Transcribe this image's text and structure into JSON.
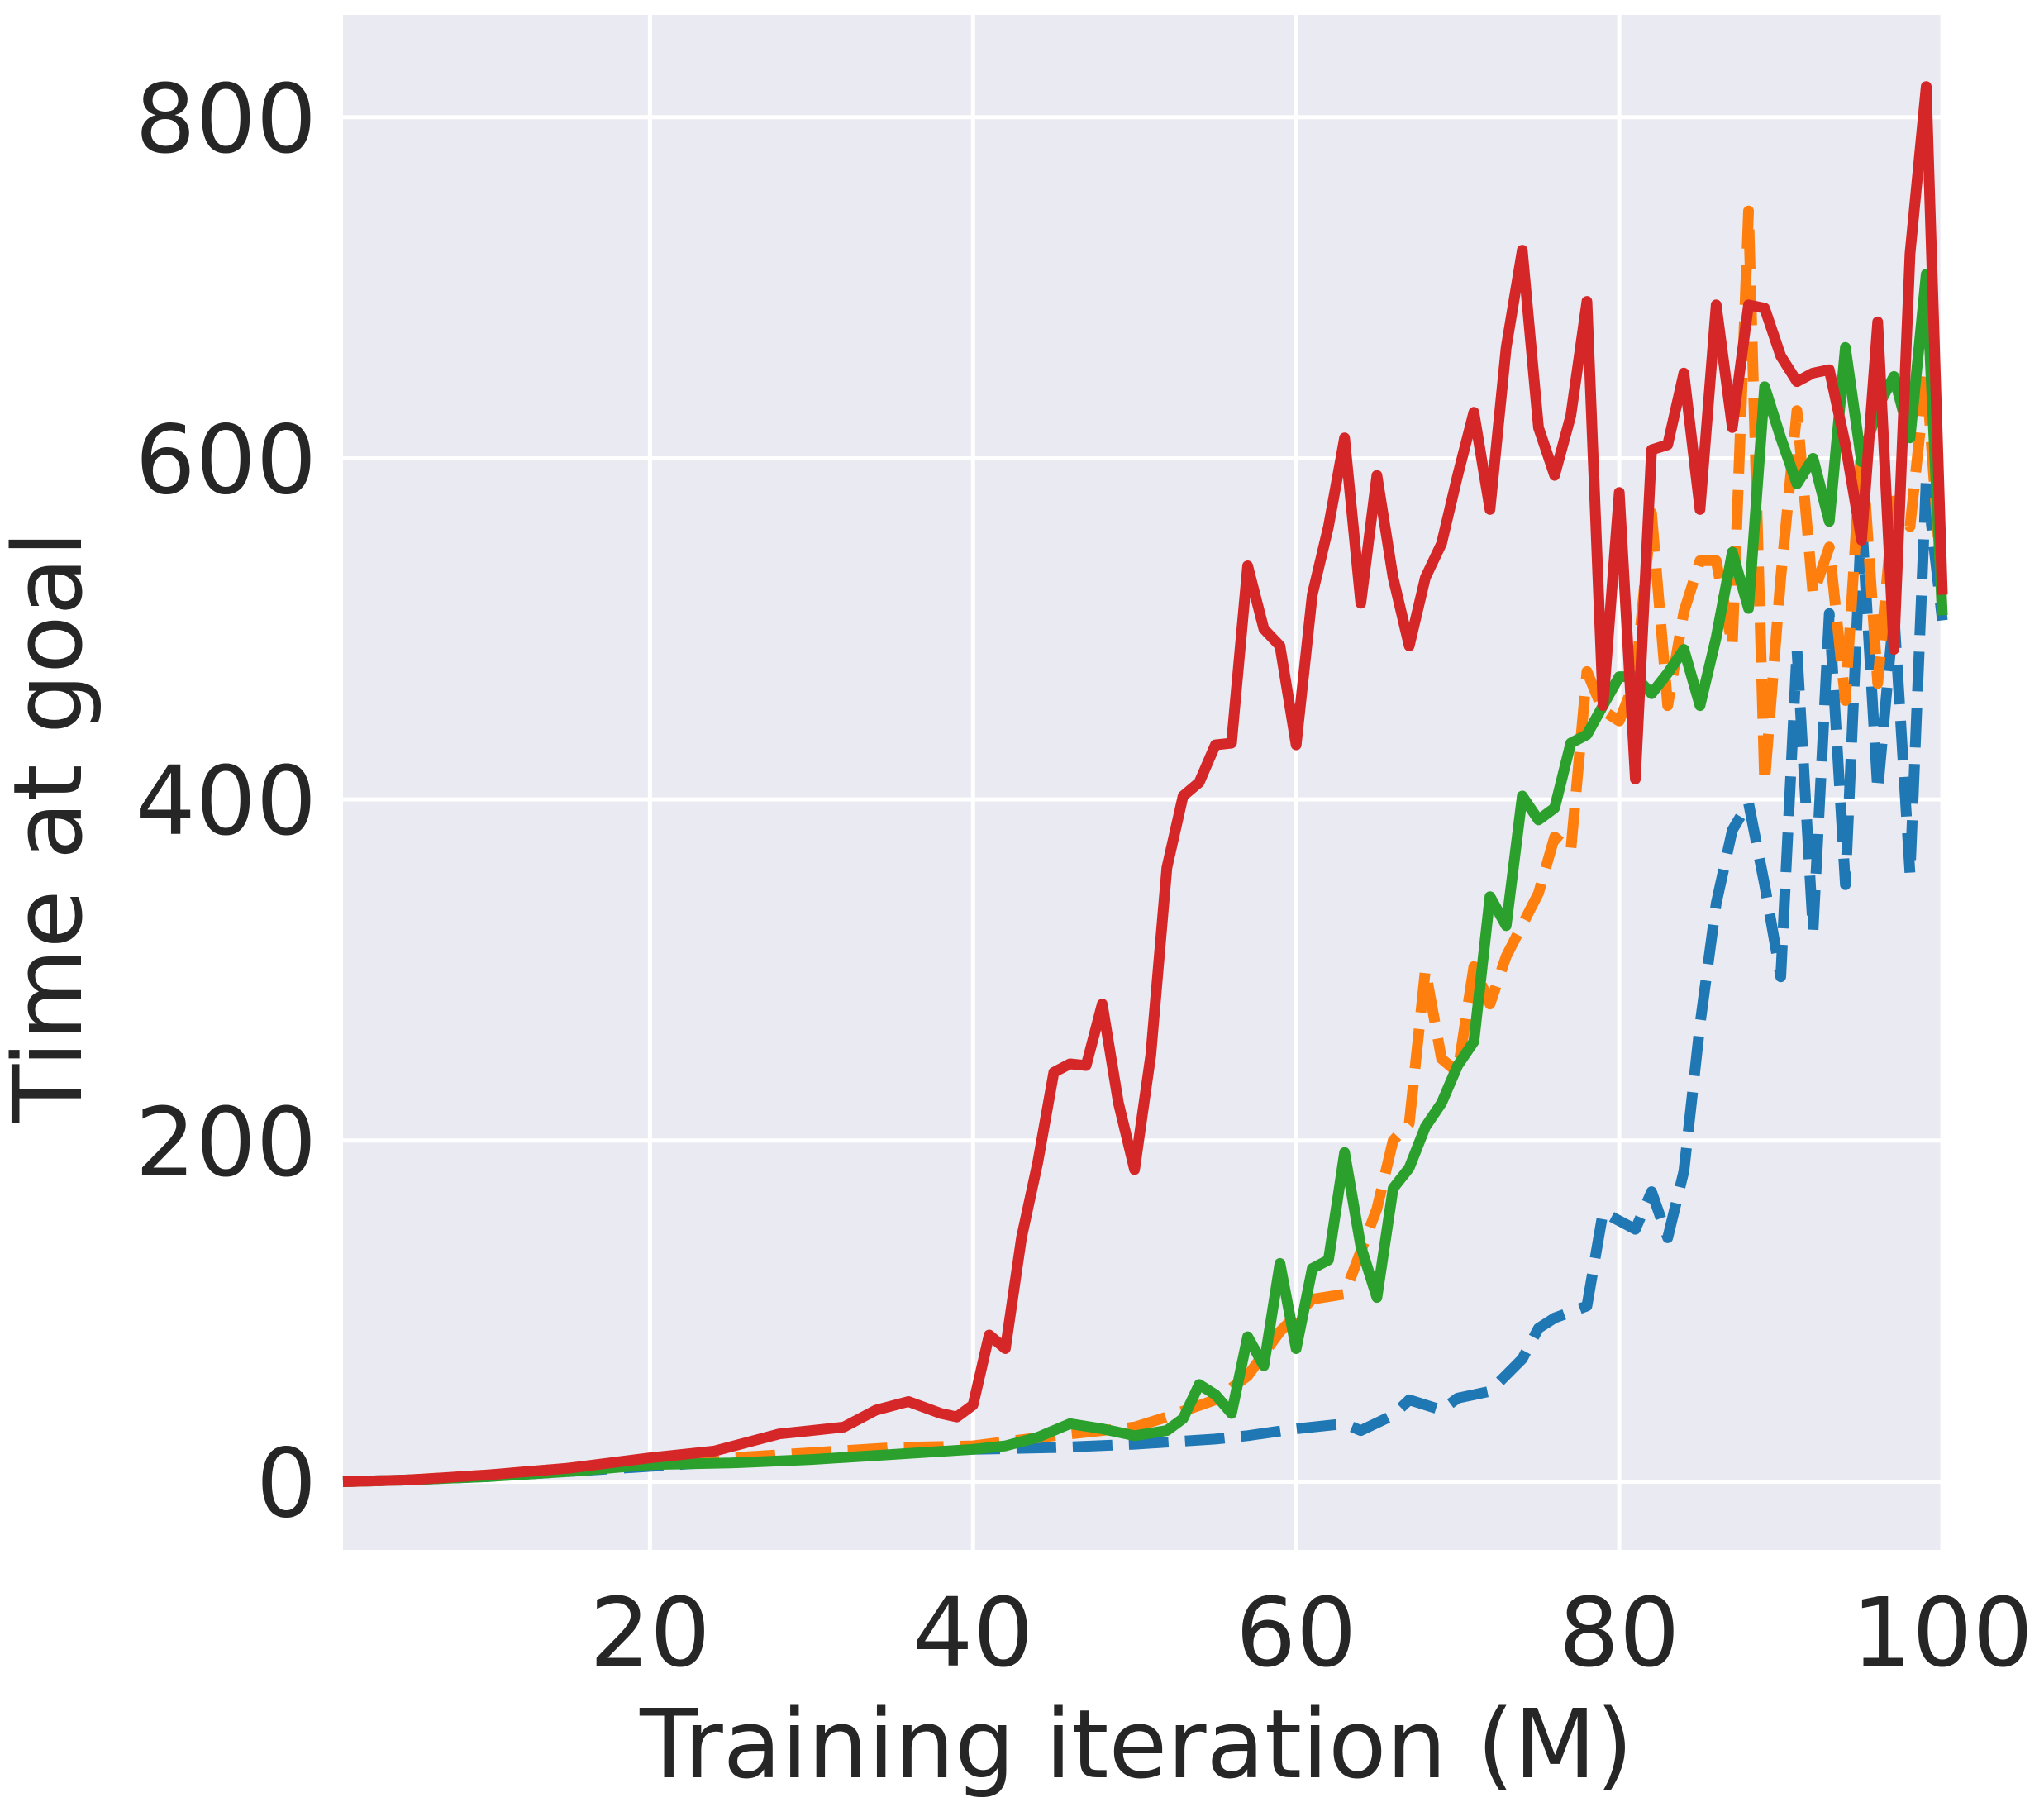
{
  "chart_data": {
    "type": "line",
    "title": "",
    "xlabel": "Training iteration (M)",
    "ylabel": "Time at goal",
    "xlim": [
      1,
      100
    ],
    "ylim": [
      -40,
      860
    ],
    "xticks": [
      20,
      40,
      60,
      80,
      100
    ],
    "yticks": [
      0,
      200,
      400,
      600,
      800
    ],
    "grid": true,
    "background": "#EAEAF2",
    "grid_color": "#ffffff",
    "legend": null,
    "series": [
      {
        "color": "#1f77b4",
        "dash": true,
        "points": [
          [
            1,
            0
          ],
          [
            5,
            1
          ],
          [
            10,
            3
          ],
          [
            15,
            6
          ],
          [
            20,
            9
          ],
          [
            25,
            12
          ],
          [
            30,
            14
          ],
          [
            35,
            17
          ],
          [
            40,
            19
          ],
          [
            45,
            20
          ],
          [
            50,
            22
          ],
          [
            55,
            25
          ],
          [
            57,
            27
          ],
          [
            60,
            31
          ],
          [
            63,
            34
          ],
          [
            64,
            30
          ],
          [
            66,
            39
          ],
          [
            67,
            48
          ],
          [
            69,
            42
          ],
          [
            70,
            49
          ],
          [
            72,
            53
          ],
          [
            74,
            72
          ],
          [
            75,
            90
          ],
          [
            76,
            96
          ],
          [
            78,
            103
          ],
          [
            79,
            158
          ],
          [
            81,
            148
          ],
          [
            82,
            170
          ],
          [
            83,
            143
          ],
          [
            84,
            182
          ],
          [
            85,
            268
          ],
          [
            86,
            339
          ],
          [
            87,
            382
          ],
          [
            88,
            398
          ],
          [
            89,
            350
          ],
          [
            90,
            296
          ],
          [
            91,
            488
          ],
          [
            92,
            323
          ],
          [
            93,
            509
          ],
          [
            94,
            350
          ],
          [
            95,
            565
          ],
          [
            96,
            405
          ],
          [
            97,
            510
          ],
          [
            98,
            356
          ],
          [
            99,
            588
          ],
          [
            100,
            505
          ]
        ]
      },
      {
        "color": "#ff7f0e",
        "dash": true,
        "points": [
          [
            1,
            0
          ],
          [
            5,
            1
          ],
          [
            10,
            4
          ],
          [
            15,
            8
          ],
          [
            20,
            10
          ],
          [
            25,
            14
          ],
          [
            30,
            17
          ],
          [
            35,
            20
          ],
          [
            40,
            21
          ],
          [
            45,
            27
          ],
          [
            50,
            32
          ],
          [
            52,
            38
          ],
          [
            55,
            48
          ],
          [
            57,
            62
          ],
          [
            59,
            88
          ],
          [
            61,
            107
          ],
          [
            63,
            110
          ],
          [
            65,
            160
          ],
          [
            66,
            200
          ],
          [
            67,
            210
          ],
          [
            68,
            300
          ],
          [
            69,
            248
          ],
          [
            70,
            240
          ],
          [
            71,
            302
          ],
          [
            72,
            280
          ],
          [
            73,
            308
          ],
          [
            75,
            345
          ],
          [
            76,
            378
          ],
          [
            77,
            370
          ],
          [
            78,
            475
          ],
          [
            79,
            452
          ],
          [
            80,
            446
          ],
          [
            81,
            470
          ],
          [
            82,
            568
          ],
          [
            83,
            455
          ],
          [
            84,
            510
          ],
          [
            85,
            540
          ],
          [
            86,
            540
          ],
          [
            87,
            490
          ],
          [
            88,
            745
          ],
          [
            89,
            410
          ],
          [
            90,
            530
          ],
          [
            91,
            628
          ],
          [
            92,
            520
          ],
          [
            93,
            548
          ],
          [
            94,
            458
          ],
          [
            95,
            608
          ],
          [
            96,
            468
          ],
          [
            97,
            575
          ],
          [
            98,
            560
          ],
          [
            99,
            650
          ],
          [
            100,
            520
          ]
        ]
      },
      {
        "color": "#2ca02c",
        "dash": false,
        "points": [
          [
            1,
            0
          ],
          [
            5,
            1
          ],
          [
            10,
            3
          ],
          [
            15,
            6
          ],
          [
            20,
            10
          ],
          [
            25,
            11
          ],
          [
            30,
            13
          ],
          [
            35,
            16
          ],
          [
            40,
            19
          ],
          [
            42,
            21
          ],
          [
            44,
            26
          ],
          [
            46,
            34
          ],
          [
            48,
            31
          ],
          [
            50,
            27
          ],
          [
            52,
            30
          ],
          [
            53,
            37
          ],
          [
            54,
            57
          ],
          [
            55,
            51
          ],
          [
            56,
            40
          ],
          [
            57,
            85
          ],
          [
            58,
            68
          ],
          [
            59,
            128
          ],
          [
            60,
            78
          ],
          [
            61,
            125
          ],
          [
            62,
            130
          ],
          [
            63,
            193
          ],
          [
            64,
            138
          ],
          [
            65,
            108
          ],
          [
            66,
            172
          ],
          [
            67,
            184
          ],
          [
            68,
            208
          ],
          [
            69,
            222
          ],
          [
            70,
            244
          ],
          [
            71,
            258
          ],
          [
            72,
            343
          ],
          [
            73,
            326
          ],
          [
            74,
            402
          ],
          [
            75,
            388
          ],
          [
            76,
            395
          ],
          [
            77,
            433
          ],
          [
            78,
            438
          ],
          [
            79,
            455
          ],
          [
            80,
            472
          ],
          [
            81,
            472
          ],
          [
            82,
            462
          ],
          [
            83,
            474
          ],
          [
            84,
            488
          ],
          [
            85,
            455
          ],
          [
            86,
            495
          ],
          [
            87,
            545
          ],
          [
            88,
            512
          ],
          [
            89,
            642
          ],
          [
            90,
            612
          ],
          [
            91,
            585
          ],
          [
            92,
            600
          ],
          [
            93,
            563
          ],
          [
            94,
            665
          ],
          [
            95,
            598
          ],
          [
            96,
            630
          ],
          [
            97,
            648
          ],
          [
            98,
            612
          ],
          [
            99,
            708
          ],
          [
            100,
            508
          ]
        ]
      },
      {
        "color": "#d62728",
        "dash": false,
        "points": [
          [
            1,
            0
          ],
          [
            5,
            1
          ],
          [
            10,
            4
          ],
          [
            15,
            8
          ],
          [
            20,
            14
          ],
          [
            22,
            16
          ],
          [
            24,
            18
          ],
          [
            26,
            23
          ],
          [
            28,
            28
          ],
          [
            30,
            30
          ],
          [
            32,
            32
          ],
          [
            34,
            42
          ],
          [
            36,
            47
          ],
          [
            38,
            40
          ],
          [
            39,
            38
          ],
          [
            40,
            45
          ],
          [
            41,
            86
          ],
          [
            42,
            78
          ],
          [
            43,
            143
          ],
          [
            44,
            187
          ],
          [
            45,
            240
          ],
          [
            46,
            245
          ],
          [
            47,
            244
          ],
          [
            48,
            280
          ],
          [
            49,
            222
          ],
          [
            50,
            183
          ],
          [
            51,
            250
          ],
          [
            52,
            360
          ],
          [
            53,
            402
          ],
          [
            54,
            410
          ],
          [
            55,
            432
          ],
          [
            56,
            433
          ],
          [
            57,
            537
          ],
          [
            58,
            500
          ],
          [
            59,
            490
          ],
          [
            60,
            432
          ],
          [
            61,
            520
          ],
          [
            62,
            560
          ],
          [
            63,
            612
          ],
          [
            64,
            515
          ],
          [
            65,
            590
          ],
          [
            66,
            530
          ],
          [
            67,
            490
          ],
          [
            68,
            530
          ],
          [
            69,
            550
          ],
          [
            70,
            590
          ],
          [
            71,
            627
          ],
          [
            72,
            570
          ],
          [
            73,
            665
          ],
          [
            74,
            722
          ],
          [
            75,
            618
          ],
          [
            76,
            590
          ],
          [
            77,
            625
          ],
          [
            78,
            692
          ],
          [
            79,
            455
          ],
          [
            80,
            580
          ],
          [
            81,
            412
          ],
          [
            82,
            605
          ],
          [
            83,
            608
          ],
          [
            84,
            650
          ],
          [
            85,
            570
          ],
          [
            86,
            690
          ],
          [
            87,
            618
          ],
          [
            88,
            690
          ],
          [
            89,
            688
          ],
          [
            90,
            660
          ],
          [
            91,
            645
          ],
          [
            92,
            650
          ],
          [
            93,
            652
          ],
          [
            94,
            608
          ],
          [
            95,
            552
          ],
          [
            96,
            680
          ],
          [
            97,
            488
          ],
          [
            98,
            720
          ],
          [
            99,
            818
          ],
          [
            100,
            520
          ]
        ]
      }
    ]
  }
}
